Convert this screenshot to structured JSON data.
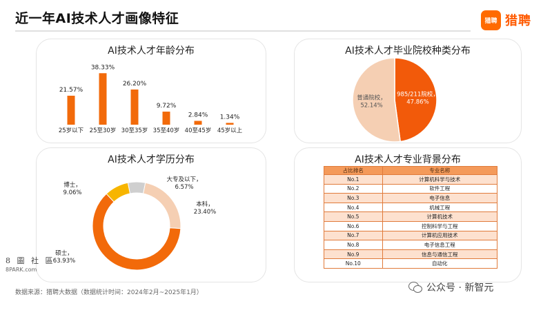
{
  "header": {
    "title": "近一年AI技术人才画像特征",
    "logo_mark": "猎聘",
    "logo_text": "猎聘"
  },
  "footer": {
    "source": "数据来源：猎聘大数据（数据统计时间：2024年2月~2025年1月）",
    "watermark_left_cn": "8 圖 社 區",
    "watermark_left_en": "8PARK.com",
    "watermark_right": "公众号 · 新智元"
  },
  "colors": {
    "orange": "#f26a0a",
    "yellow": "#f7b500",
    "peach": "#f5cfb3",
    "grey": "#cfcfcf"
  },
  "chart_data": [
    {
      "type": "bar",
      "title": "AI技术人才年龄分布",
      "categories": [
        "25岁以下",
        "25至30岁",
        "30至35岁",
        "35至40岁",
        "40至45岁",
        "45岁以上"
      ],
      "values": [
        21.57,
        38.33,
        26.2,
        9.72,
        2.84,
        1.34
      ],
      "labels": [
        "21.57%",
        "38.33%",
        "26.20%",
        "9.72%",
        "2.84%",
        "1.34%"
      ],
      "ylim": [
        0,
        40
      ]
    },
    {
      "type": "pie",
      "title": "AI技术人才毕业院校种类分布",
      "slices": [
        {
          "name": "985/211院校",
          "value": 47.86,
          "label": "47.86%",
          "color": "#f25a0a"
        },
        {
          "name": "普通院校",
          "value": 52.14,
          "label": "52.14%",
          "color": "#f5cfb3"
        }
      ]
    },
    {
      "type": "pie",
      "title": "AI技术人才学历分布",
      "donut": true,
      "slices": [
        {
          "name": "硕士",
          "value": 63.93,
          "label": "63.93%",
          "color": "#f26a0a"
        },
        {
          "name": "博士",
          "value": 9.06,
          "label": "9.06%",
          "color": "#f7b500"
        },
        {
          "name": "大专及以下",
          "value": 6.57,
          "label": "6.57%",
          "color": "#cfcfcf"
        },
        {
          "name": "本科",
          "value": 23.4,
          "label": "23.40%",
          "color": "#f5cfb3"
        }
      ]
    },
    {
      "type": "table",
      "title": "AI技术人才专业背景分布",
      "columns": [
        "占比排名",
        "专业名称"
      ],
      "rows": [
        [
          "No.1",
          "计算机科学与技术"
        ],
        [
          "No.2",
          "软件工程"
        ],
        [
          "No.3",
          "电子信息"
        ],
        [
          "No.4",
          "机械工程"
        ],
        [
          "No.5",
          "计算机技术"
        ],
        [
          "No.6",
          "控制科学与工程"
        ],
        [
          "No.7",
          "计算机应用技术"
        ],
        [
          "No.8",
          "电子信息工程"
        ],
        [
          "No.9",
          "信息与通信工程"
        ],
        [
          "No.10",
          "自动化"
        ]
      ]
    }
  ]
}
